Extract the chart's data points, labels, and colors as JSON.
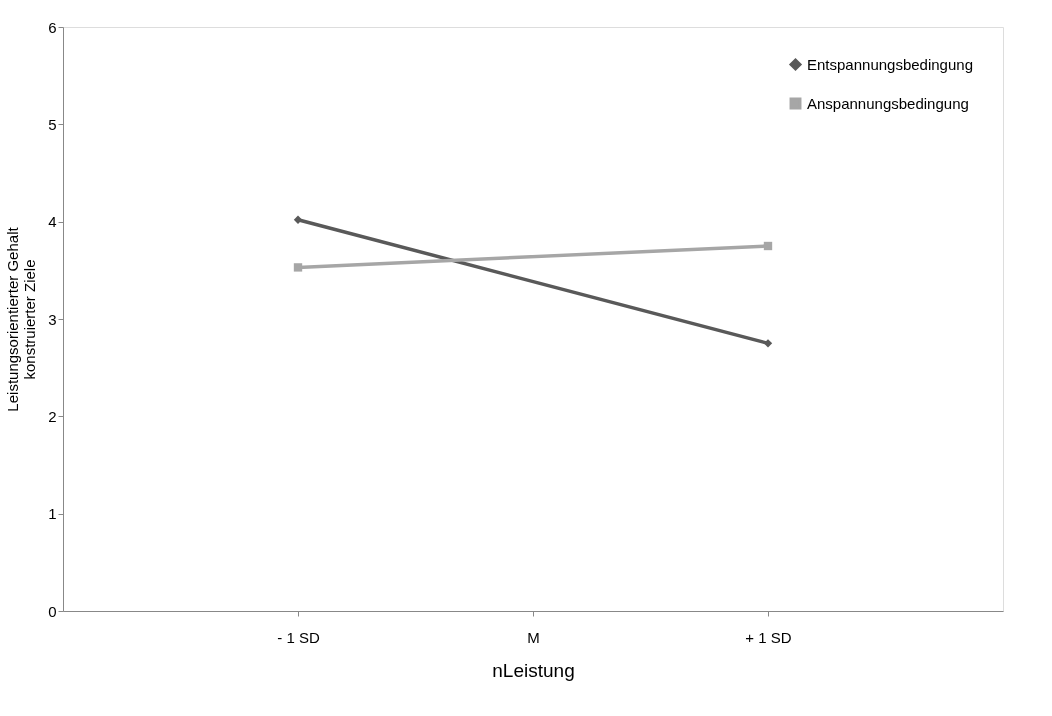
{
  "chart_data": {
    "type": "line",
    "xlabel": "nLeistung",
    "ylabel": "Leistungsorientierter Gehalt\nkonstruierter Ziele",
    "x": [
      -1,
      1
    ],
    "xlim": [
      -2,
      2
    ],
    "xticks": [
      {
        "value": -1,
        "label": "- 1 SD"
      },
      {
        "value": 0,
        "label": "M"
      },
      {
        "value": 1,
        "label": "+ 1 SD"
      }
    ],
    "ylim": [
      0,
      6
    ],
    "yticks": [
      0,
      1,
      2,
      3,
      4,
      5,
      6
    ],
    "grid": false,
    "legend": "top right",
    "line_style": "solid",
    "series": [
      {
        "name": "Entspannungsbedingung",
        "color": "#595959",
        "marker": "diamond",
        "values": [
          4.02,
          2.75
        ]
      },
      {
        "name": "Anspannungsbedingung",
        "color": "#a6a6a6",
        "marker": "square",
        "values": [
          3.53,
          3.75
        ]
      }
    ]
  }
}
